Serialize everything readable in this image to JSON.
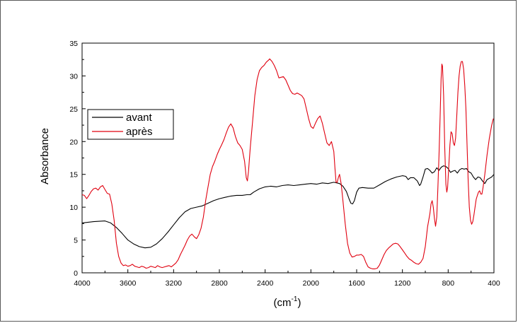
{
  "chart_data": {
    "type": "line",
    "title": "",
    "xlabel": "(cm",
    "xlabel_sup": "-1",
    "xlabel_close": ")",
    "ylabel": "Absorbance",
    "xlim": [
      4000,
      400
    ],
    "ylim": [
      0,
      35
    ],
    "x_reversed": true,
    "x_ticks": [
      4000,
      3600,
      3200,
      2800,
      2400,
      2000,
      1600,
      1200,
      800,
      400
    ],
    "y_ticks": [
      0,
      5,
      10,
      15,
      20,
      25,
      30,
      35
    ],
    "grid": false,
    "legend_position": "left",
    "series": [
      {
        "name": "avant",
        "color": "#000000",
        "points": [
          [
            4000,
            7.6
          ],
          [
            3900,
            7.8
          ],
          [
            3800,
            7.9
          ],
          [
            3750,
            7.6
          ],
          [
            3700,
            6.9
          ],
          [
            3650,
            6.0
          ],
          [
            3600,
            5.0
          ],
          [
            3550,
            4.4
          ],
          [
            3500,
            4.0
          ],
          [
            3450,
            3.8
          ],
          [
            3400,
            3.9
          ],
          [
            3350,
            4.4
          ],
          [
            3300,
            5.2
          ],
          [
            3250,
            6.2
          ],
          [
            3200,
            7.3
          ],
          [
            3150,
            8.4
          ],
          [
            3100,
            9.3
          ],
          [
            3050,
            9.8
          ],
          [
            3000,
            10.0
          ],
          [
            2950,
            10.2
          ],
          [
            2900,
            10.6
          ],
          [
            2850,
            11.0
          ],
          [
            2800,
            11.3
          ],
          [
            2750,
            11.5
          ],
          [
            2700,
            11.7
          ],
          [
            2650,
            11.8
          ],
          [
            2600,
            11.8
          ],
          [
            2560,
            11.9
          ],
          [
            2530,
            11.9
          ],
          [
            2500,
            12.3
          ],
          [
            2450,
            12.8
          ],
          [
            2400,
            13.1
          ],
          [
            2350,
            13.2
          ],
          [
            2300,
            13.1
          ],
          [
            2250,
            13.3
          ],
          [
            2200,
            13.4
          ],
          [
            2150,
            13.3
          ],
          [
            2100,
            13.4
          ],
          [
            2050,
            13.5
          ],
          [
            2000,
            13.6
          ],
          [
            1950,
            13.5
          ],
          [
            1900,
            13.7
          ],
          [
            1850,
            13.6
          ],
          [
            1800,
            13.8
          ],
          [
            1750,
            13.6
          ],
          [
            1720,
            13.2
          ],
          [
            1690,
            12.4
          ],
          [
            1665,
            11.2
          ],
          [
            1650,
            10.6
          ],
          [
            1635,
            10.5
          ],
          [
            1620,
            11.0
          ],
          [
            1600,
            12.3
          ],
          [
            1580,
            12.9
          ],
          [
            1550,
            13.0
          ],
          [
            1500,
            12.9
          ],
          [
            1450,
            12.9
          ],
          [
            1400,
            13.4
          ],
          [
            1350,
            13.9
          ],
          [
            1300,
            14.3
          ],
          [
            1250,
            14.6
          ],
          [
            1200,
            14.8
          ],
          [
            1170,
            14.7
          ],
          [
            1150,
            14.2
          ],
          [
            1130,
            14.5
          ],
          [
            1100,
            14.5
          ],
          [
            1070,
            14.0
          ],
          [
            1050,
            13.3
          ],
          [
            1040,
            13.5
          ],
          [
            1020,
            14.6
          ],
          [
            1000,
            15.8
          ],
          [
            980,
            15.9
          ],
          [
            960,
            15.6
          ],
          [
            940,
            15.2
          ],
          [
            920,
            15.4
          ],
          [
            900,
            16.0
          ],
          [
            880,
            15.6
          ],
          [
            860,
            16.1
          ],
          [
            840,
            16.3
          ],
          [
            820,
            16.2
          ],
          [
            800,
            15.9
          ],
          [
            780,
            15.3
          ],
          [
            760,
            15.5
          ],
          [
            740,
            15.6
          ],
          [
            720,
            15.2
          ],
          [
            700,
            15.7
          ],
          [
            680,
            15.9
          ],
          [
            660,
            15.8
          ],
          [
            640,
            15.9
          ],
          [
            620,
            15.4
          ],
          [
            600,
            15.2
          ],
          [
            580,
            14.6
          ],
          [
            560,
            14.2
          ],
          [
            540,
            14.6
          ],
          [
            520,
            14.5
          ],
          [
            500,
            14.0
          ],
          [
            480,
            13.6
          ],
          [
            460,
            14.2
          ],
          [
            440,
            14.4
          ],
          [
            420,
            14.6
          ],
          [
            400,
            15.0
          ]
        ]
      },
      {
        "name": "après",
        "color": "#e0000f",
        "points": [
          [
            4000,
            11.9
          ],
          [
            3980,
            11.8
          ],
          [
            3960,
            11.3
          ],
          [
            3940,
            11.8
          ],
          [
            3920,
            12.4
          ],
          [
            3900,
            12.8
          ],
          [
            3880,
            12.9
          ],
          [
            3860,
            12.6
          ],
          [
            3840,
            13.1
          ],
          [
            3820,
            13.3
          ],
          [
            3800,
            12.7
          ],
          [
            3780,
            12.1
          ],
          [
            3760,
            12.0
          ],
          [
            3740,
            10.5
          ],
          [
            3720,
            8.0
          ],
          [
            3700,
            4.5
          ],
          [
            3680,
            2.5
          ],
          [
            3660,
            1.5
          ],
          [
            3640,
            1.1
          ],
          [
            3620,
            1.2
          ],
          [
            3600,
            1.0
          ],
          [
            3580,
            1.1
          ],
          [
            3560,
            1.3
          ],
          [
            3540,
            1.0
          ],
          [
            3520,
            0.9
          ],
          [
            3500,
            0.8
          ],
          [
            3480,
            1.0
          ],
          [
            3460,
            0.9
          ],
          [
            3440,
            0.7
          ],
          [
            3420,
            0.8
          ],
          [
            3400,
            1.0
          ],
          [
            3380,
            0.9
          ],
          [
            3360,
            0.8
          ],
          [
            3340,
            1.1
          ],
          [
            3320,
            0.9
          ],
          [
            3300,
            0.8
          ],
          [
            3280,
            0.9
          ],
          [
            3260,
            1.0
          ],
          [
            3240,
            1.1
          ],
          [
            3220,
            0.9
          ],
          [
            3200,
            1.2
          ],
          [
            3180,
            1.5
          ],
          [
            3160,
            2.0
          ],
          [
            3140,
            2.8
          ],
          [
            3120,
            3.5
          ],
          [
            3100,
            4.2
          ],
          [
            3080,
            5.0
          ],
          [
            3060,
            5.6
          ],
          [
            3040,
            5.9
          ],
          [
            3020,
            5.5
          ],
          [
            3000,
            5.2
          ],
          [
            2980,
            5.8
          ],
          [
            2960,
            6.8
          ],
          [
            2940,
            8.5
          ],
          [
            2920,
            11.0
          ],
          [
            2900,
            13.0
          ],
          [
            2880,
            15.0
          ],
          [
            2860,
            16.2
          ],
          [
            2840,
            17.0
          ],
          [
            2820,
            18.0
          ],
          [
            2800,
            18.8
          ],
          [
            2780,
            19.5
          ],
          [
            2760,
            20.3
          ],
          [
            2740,
            21.3
          ],
          [
            2720,
            22.2
          ],
          [
            2700,
            22.7
          ],
          [
            2680,
            22.1
          ],
          [
            2660,
            20.8
          ],
          [
            2640,
            19.8
          ],
          [
            2620,
            19.4
          ],
          [
            2600,
            18.8
          ],
          [
            2580,
            17.0
          ],
          [
            2565,
            14.5
          ],
          [
            2555,
            14.0
          ],
          [
            2545,
            15.5
          ],
          [
            2530,
            19.0
          ],
          [
            2510,
            23.0
          ],
          [
            2490,
            27.0
          ],
          [
            2470,
            29.5
          ],
          [
            2450,
            30.8
          ],
          [
            2430,
            31.3
          ],
          [
            2410,
            31.6
          ],
          [
            2390,
            32.1
          ],
          [
            2370,
            32.4
          ],
          [
            2360,
            32.6
          ],
          [
            2340,
            32.2
          ],
          [
            2320,
            31.6
          ],
          [
            2300,
            30.8
          ],
          [
            2280,
            29.7
          ],
          [
            2260,
            29.8
          ],
          [
            2240,
            29.9
          ],
          [
            2220,
            29.4
          ],
          [
            2200,
            28.6
          ],
          [
            2180,
            27.8
          ],
          [
            2160,
            27.3
          ],
          [
            2140,
            27.2
          ],
          [
            2120,
            27.4
          ],
          [
            2100,
            27.2
          ],
          [
            2080,
            27.0
          ],
          [
            2060,
            26.5
          ],
          [
            2040,
            25.0
          ],
          [
            2020,
            23.5
          ],
          [
            2000,
            22.3
          ],
          [
            1980,
            22.0
          ],
          [
            1960,
            22.8
          ],
          [
            1940,
            23.5
          ],
          [
            1920,
            23.9
          ],
          [
            1900,
            22.8
          ],
          [
            1880,
            21.3
          ],
          [
            1860,
            19.8
          ],
          [
            1840,
            19.4
          ],
          [
            1820,
            20.0
          ],
          [
            1800,
            18.5
          ],
          [
            1790,
            16.0
          ],
          [
            1780,
            13.8
          ],
          [
            1770,
            13.8
          ],
          [
            1760,
            14.5
          ],
          [
            1750,
            15.0
          ],
          [
            1735,
            13.5
          ],
          [
            1720,
            11.0
          ],
          [
            1700,
            7.5
          ],
          [
            1680,
            4.5
          ],
          [
            1660,
            3.0
          ],
          [
            1640,
            2.4
          ],
          [
            1620,
            2.5
          ],
          [
            1600,
            2.7
          ],
          [
            1580,
            2.7
          ],
          [
            1560,
            2.8
          ],
          [
            1540,
            2.5
          ],
          [
            1520,
            1.6
          ],
          [
            1500,
            0.9
          ],
          [
            1480,
            0.7
          ],
          [
            1460,
            0.6
          ],
          [
            1440,
            0.6
          ],
          [
            1420,
            0.7
          ],
          [
            1400,
            1.2
          ],
          [
            1380,
            2.0
          ],
          [
            1360,
            2.8
          ],
          [
            1340,
            3.4
          ],
          [
            1320,
            3.8
          ],
          [
            1300,
            4.1
          ],
          [
            1280,
            4.4
          ],
          [
            1260,
            4.5
          ],
          [
            1240,
            4.4
          ],
          [
            1220,
            4.0
          ],
          [
            1200,
            3.5
          ],
          [
            1180,
            3.0
          ],
          [
            1160,
            2.5
          ],
          [
            1140,
            2.1
          ],
          [
            1120,
            1.9
          ],
          [
            1100,
            1.6
          ],
          [
            1080,
            1.4
          ],
          [
            1060,
            1.3
          ],
          [
            1040,
            1.6
          ],
          [
            1020,
            2.2
          ],
          [
            1000,
            4.0
          ],
          [
            980,
            7.0
          ],
          [
            960,
            9.0
          ],
          [
            950,
            10.5
          ],
          [
            940,
            11.0
          ],
          [
            930,
            10.0
          ],
          [
            920,
            8.3
          ],
          [
            910,
            7.1
          ],
          [
            900,
            8.5
          ],
          [
            890,
            13.0
          ],
          [
            880,
            18.0
          ],
          [
            870,
            24.0
          ],
          [
            862,
            29.5
          ],
          [
            855,
            31.8
          ],
          [
            850,
            31.5
          ],
          [
            840,
            27.0
          ],
          [
            830,
            19.0
          ],
          [
            820,
            13.5
          ],
          [
            812,
            12.3
          ],
          [
            805,
            13.0
          ],
          [
            795,
            16.0
          ],
          [
            785,
            19.5
          ],
          [
            775,
            21.5
          ],
          [
            765,
            21.2
          ],
          [
            755,
            19.8
          ],
          [
            745,
            19.4
          ],
          [
            735,
            20.5
          ],
          [
            725,
            24.0
          ],
          [
            715,
            27.5
          ],
          [
            705,
            30.0
          ],
          [
            695,
            31.5
          ],
          [
            685,
            32.2
          ],
          [
            675,
            32.2
          ],
          [
            665,
            31.0
          ],
          [
            655,
            28.5
          ],
          [
            645,
            25.0
          ],
          [
            635,
            19.5
          ],
          [
            625,
            14.0
          ],
          [
            615,
            10.0
          ],
          [
            605,
            8.0
          ],
          [
            595,
            7.4
          ],
          [
            585,
            7.8
          ],
          [
            575,
            8.8
          ],
          [
            565,
            10.0
          ],
          [
            555,
            11.2
          ],
          [
            545,
            11.8
          ],
          [
            535,
            12.3
          ],
          [
            525,
            12.5
          ],
          [
            515,
            12.0
          ],
          [
            505,
            12.0
          ],
          [
            495,
            13.0
          ],
          [
            480,
            15.0
          ],
          [
            460,
            18.0
          ],
          [
            440,
            20.5
          ],
          [
            420,
            22.5
          ],
          [
            405,
            23.5
          ]
        ]
      }
    ]
  }
}
